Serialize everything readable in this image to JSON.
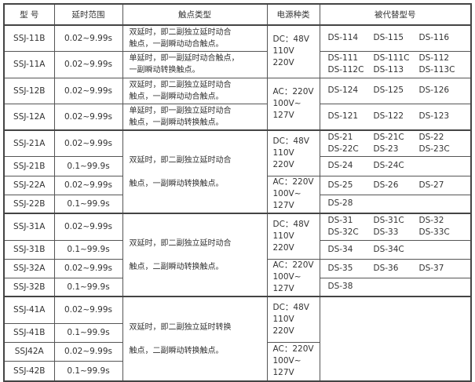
{
  "headers": [
    "型 号",
    "延时范围",
    "触点类型",
    "电源种类",
    "被代替型号"
  ],
  "rows": [
    {
      "model": "SSJ-11B",
      "range": "0.02~9.99s",
      "contact": "双延时，即二副独立延时动合\n触点，一副瞬动动合触点。",
      "power": "DC：48V\n110V\n220V",
      "replaced": [
        "DS-114",
        "DS-115",
        "DS-116"
      ]
    },
    {
      "model": "SSJ-11A",
      "range": "0.02~9.99s",
      "contact": "单延时，即一副延时动合触点，\n一副瞬动转换触点。",
      "replaced": [
        "DS-111",
        "DS-111C",
        "DS-112",
        "DS-112C",
        "DS-113",
        "DS-113C"
      ]
    },
    {
      "model": "SSJ-12B",
      "range": "0.02~9.99s",
      "contact": "双延时，即二副独立延时动合\n触点，一副瞬动动合触点。",
      "power": "AC：220V\n100V~\n127V",
      "replaced": [
        "DS-124",
        "DS-125",
        "DS-126"
      ]
    },
    {
      "model": "SSJ-12A",
      "range": "0.02~9.99s",
      "contact": "单延时，即一副独立延时动合\n触点，一副瞬动转换触点。",
      "replaced": [
        "DS-121",
        "DS-122",
        "DS-123"
      ]
    },
    {
      "model": "SSJ-21A",
      "range": "0.02~9.99s",
      "contact": "双延时，即二副独立延时动合\n\n触点，一副瞬动转换触点。",
      "power": "DC：48V\n110V\n220V",
      "replaced": [
        "DS-21",
        "DS-21C",
        "DS-22",
        "DS-22C",
        "DS-23",
        "DS-23C"
      ]
    },
    {
      "model": "SSJ-21B",
      "range": "0.1~99.9s",
      "replaced": [
        "DS-24",
        "DS-24C"
      ]
    },
    {
      "model": "SSJ-22A",
      "range": "0.02~9.99s",
      "power": "AC：220V\n100V~\n127V",
      "replaced": [
        "DS-25",
        "DS-26",
        "DS-27"
      ]
    },
    {
      "model": "SSJ-22B",
      "range": "0.1~99.9s",
      "replaced": [
        "DS-28"
      ]
    },
    {
      "model": "SSJ-31A",
      "range": "0.02~9.99s",
      "contact": "双延时，即二副独立延时动合\n\n触点，二副瞬动转换触点。",
      "power": "DC：48V\n110V\n220V",
      "replaced": [
        "DS-31",
        "DS-31C",
        "DS-32",
        "DS-32C",
        "DS-33",
        "DS-33C"
      ]
    },
    {
      "model": "SSJ-31B",
      "range": "0.1~99.9s",
      "replaced": [
        "DS-34",
        "DS-34C"
      ]
    },
    {
      "model": "SSJ-32A",
      "range": "0.02~9.99s",
      "power": "AC：220V\n100V~\n127V",
      "replaced": [
        "DS-35",
        "DS-36",
        "DS-37"
      ]
    },
    {
      "model": "SSJ-32B",
      "range": "0.1~99.9s",
      "replaced": [
        "DS-38"
      ]
    },
    {
      "model": "SSJ-41A",
      "range": "0.02~9.99s",
      "contact": "双延时，即二副独立延时转换\n\n触点，二副瞬动转换触点。",
      "power": "DC：48V\n110V\n220V",
      "replaced": []
    },
    {
      "model": "SSJ-41B",
      "range": "0.1~99.9s"
    },
    {
      "model": "SSJ42A",
      "range": "0.02~9.99s",
      "power": "AC：220V\n100V~\n127V"
    },
    {
      "model": "SSJ-42B",
      "range": "0.1~99.9s"
    }
  ]
}
